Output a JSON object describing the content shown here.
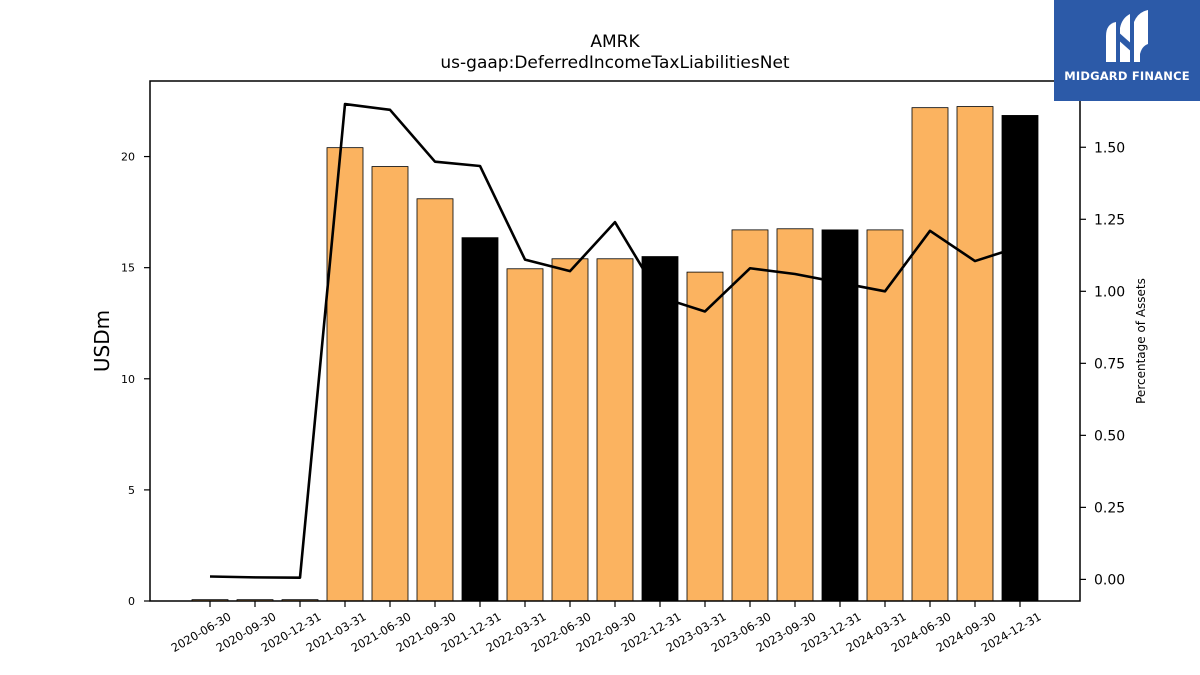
{
  "header": {
    "title": "AMRK",
    "subtitle": "us-gaap:DeferredIncomeTaxLiabilitiesNet"
  },
  "logo": {
    "text": "MIDGARD FINANCE",
    "color": "#2c5aa8"
  },
  "chart_data": {
    "type": "bar",
    "categories": [
      "2020-06-30",
      "2020-09-30",
      "2020-12-31",
      "2021-03-31",
      "2021-06-30",
      "2021-09-30",
      "2021-12-31",
      "2022-03-31",
      "2022-06-30",
      "2022-09-30",
      "2022-12-31",
      "2023-03-31",
      "2023-06-30",
      "2023-09-30",
      "2023-12-31",
      "2024-03-31",
      "2024-06-30",
      "2024-09-30",
      "2024-12-31"
    ],
    "series": [
      {
        "type": "bar",
        "axis": "left",
        "values": [
          0.06,
          0.06,
          0.06,
          20.4,
          19.55,
          18.1,
          16.35,
          14.95,
          15.4,
          15.4,
          15.5,
          14.8,
          16.7,
          16.75,
          16.7,
          16.7,
          22.2,
          22.25,
          21.85
        ],
        "colors": [
          "#fbb360",
          "#fbb360",
          "#fbb360",
          "#fbb360",
          "#fbb360",
          "#fbb360",
          "#000000",
          "#fbb360",
          "#fbb360",
          "#fbb360",
          "#000000",
          "#fbb360",
          "#fbb360",
          "#fbb360",
          "#000000",
          "#fbb360",
          "#fbb360",
          "#fbb360",
          "#000000"
        ]
      },
      {
        "type": "line",
        "axis": "right",
        "values": [
          0.01,
          0.007,
          0.006,
          1.65,
          1.63,
          1.45,
          1.435,
          1.11,
          1.07,
          1.24,
          0.98,
          0.93,
          1.08,
          1.06,
          1.03,
          1.0,
          1.21,
          1.105,
          1.155
        ],
        "color": "#000000"
      }
    ],
    "ylabel": "USDm",
    "ylabel_right": "Percentage of Assets",
    "ylim": [
      0,
      23.4
    ],
    "ylim_right": [
      -0.075,
      1.73
    ],
    "yticks": [
      0,
      5,
      10,
      15,
      20
    ],
    "yticks_right": [
      0.0,
      0.25,
      0.5,
      0.75,
      1.0,
      1.25,
      1.5
    ],
    "grid": false,
    "legend": "none"
  }
}
